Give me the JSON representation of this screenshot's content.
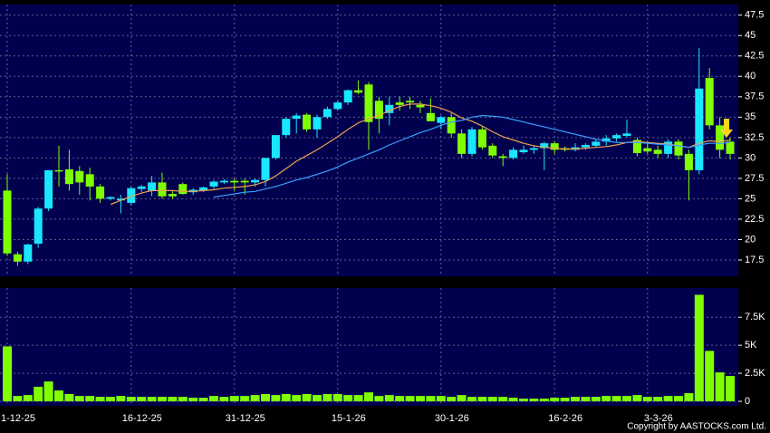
{
  "chart_data": [
    {
      "type": "candlestick",
      "categories": [
        "1-12-25",
        null,
        null,
        null,
        null,
        null,
        null,
        null,
        null,
        null,
        null,
        null,
        "16-12-25",
        null,
        null,
        null,
        null,
        null,
        null,
        null,
        null,
        null,
        "31-12-25",
        null,
        null,
        null,
        null,
        null,
        null,
        null,
        null,
        null,
        "15-1-26",
        null,
        null,
        null,
        null,
        null,
        null,
        null,
        null,
        null,
        "30-1-26",
        null,
        null,
        null,
        null,
        null,
        null,
        null,
        null,
        null,
        null,
        "16-2-26",
        null,
        null,
        null,
        null,
        null,
        null,
        null,
        null,
        "3-3-26",
        null,
        null,
        null,
        null,
        null,
        null,
        null,
        null
      ],
      "open": [
        26,
        18.2,
        17.3,
        19.5,
        23.8,
        28.5,
        28.6,
        28.4,
        28,
        26.5,
        25,
        24.8,
        24.5,
        26.2,
        26,
        27,
        25.6,
        26.8,
        25.8,
        26,
        26.5,
        27,
        27.2,
        27.2,
        27,
        27.3,
        30,
        32.8,
        34.8,
        35.3,
        33.5,
        35,
        36,
        36.8,
        38.3,
        39,
        37,
        35.5,
        36.8,
        37,
        36.5,
        35.5,
        34.3,
        35,
        33,
        30.5,
        33.5,
        31.5,
        30.2,
        30,
        30.7,
        31,
        31.2,
        31.8,
        31.2,
        31,
        31.3,
        31.5,
        32,
        32.4,
        32.7,
        32.2,
        31.2,
        31,
        30.5,
        32,
        30.5,
        28.5,
        39.8,
        34,
        32
      ],
      "high": [
        28,
        18.5,
        19.5,
        24,
        28.5,
        31.5,
        31,
        29,
        28.8,
        26.8,
        25.3,
        25.5,
        26.5,
        26.7,
        27.8,
        28.2,
        26,
        27,
        26.3,
        26.5,
        27.3,
        27.4,
        27.5,
        27.5,
        27.5,
        30,
        32.8,
        35,
        35.5,
        35.5,
        35.3,
        36.3,
        37,
        38.4,
        39.5,
        39.3,
        37.5,
        37.5,
        37.5,
        37.5,
        37,
        37.3,
        35.2,
        35.5,
        33.5,
        33.8,
        33.8,
        31.8,
        30.5,
        31.3,
        31.5,
        31.5,
        32,
        32,
        31.4,
        31.8,
        31.8,
        32.3,
        32.8,
        33,
        34.7,
        32.5,
        32,
        31.5,
        32.3,
        32.3,
        31,
        43.5,
        41,
        35,
        32.5
      ],
      "low": [
        18,
        16.8,
        17,
        19,
        23.5,
        26.5,
        26,
        25.5,
        24.8,
        24.5,
        24.8,
        23.2,
        24.2,
        25.8,
        25.3,
        25,
        25,
        25.5,
        25.5,
        25.8,
        26.2,
        26.8,
        26,
        25.5,
        26.5,
        26.5,
        29.8,
        32.5,
        33,
        33.2,
        32.5,
        34.8,
        35.8,
        36.5,
        37.8,
        31,
        33,
        34,
        35.8,
        36,
        35.5,
        34.5,
        33.5,
        32.5,
        30,
        30.2,
        31,
        30,
        29,
        29.8,
        30.5,
        30.5,
        28.5,
        30.5,
        30.8,
        30.8,
        31,
        31.3,
        31.5,
        32,
        32.5,
        30.2,
        30.5,
        30,
        30,
        29.8,
        24.8,
        28,
        33.5,
        30,
        29.8
      ],
      "close": [
        18.3,
        17.3,
        19.4,
        23.8,
        28.5,
        28.4,
        26.8,
        27,
        26.5,
        25,
        25.2,
        25,
        26.3,
        26.5,
        27,
        25.3,
        25.3,
        25.6,
        26.1,
        26.4,
        27.1,
        27.2,
        27,
        27,
        27.3,
        30,
        32.8,
        34.8,
        35.2,
        33.5,
        35,
        36,
        36.8,
        38.3,
        38,
        34.4,
        34.8,
        36.5,
        36.5,
        36.8,
        36.2,
        34.5,
        35,
        33,
        30.5,
        33.5,
        31.3,
        30.3,
        30,
        31,
        31,
        31.2,
        31.8,
        31,
        31,
        31.3,
        31.6,
        32,
        32.4,
        32.8,
        33,
        30.6,
        30.8,
        30.5,
        32,
        30.3,
        28.5,
        38.5,
        34,
        31,
        30.5
      ],
      "up_color": "#19e6ff",
      "down_color": "#80ff00",
      "moving_averages": [
        {
          "color": "#f0a050",
          "values": [
            null,
            null,
            null,
            null,
            null,
            null,
            null,
            null,
            null,
            null,
            24.3,
            24.8,
            25.3,
            25.7,
            26,
            26,
            26,
            25.9,
            25.9,
            26,
            26.1,
            26.3,
            26.4,
            26.5,
            26.7,
            27.1,
            27.8,
            28.7,
            29.6,
            30.3,
            31,
            31.8,
            32.6,
            33.5,
            34.3,
            34.8,
            35.2,
            35.8,
            36.3,
            36.6,
            36.6,
            36.4,
            36.1,
            35.6,
            34.9,
            34.5,
            33.9,
            33.2,
            32.6,
            32.2,
            31.8,
            31.5,
            31.3,
            31.2,
            31.1,
            31.1,
            31.2,
            31.3,
            31.4,
            31.6,
            31.9,
            32,
            31.9,
            31.8,
            31.7,
            31.5,
            31.3,
            31.8,
            32.1,
            32,
            32.2
          ]
        },
        {
          "color": "#3aa0ff",
          "values": [
            null,
            null,
            null,
            null,
            null,
            null,
            null,
            null,
            null,
            null,
            null,
            null,
            null,
            null,
            null,
            null,
            null,
            null,
            null,
            null,
            25.2,
            25.4,
            25.6,
            25.8,
            25.9,
            26.2,
            26.5,
            26.9,
            27.3,
            27.6,
            28,
            28.4,
            28.9,
            29.5,
            30,
            30.5,
            31,
            31.6,
            32.1,
            32.6,
            33.1,
            33.5,
            34,
            34.4,
            34.6,
            35,
            35.2,
            35.1,
            35,
            34.7,
            34.4,
            34.1,
            33.8,
            33.5,
            33.2,
            32.9,
            32.6,
            32.3,
            32.1,
            31.9,
            31.9,
            31.9,
            31.8,
            31.7,
            31.6,
            31.5,
            31.3,
            31.6,
            31.8,
            31.8,
            31.9
          ]
        }
      ],
      "ylim": [
        15.5,
        48.8
      ],
      "yticks": [
        17.5,
        20,
        22.5,
        25,
        27.5,
        30,
        32.5,
        35,
        37.5,
        40,
        42.5,
        45,
        47.5
      ],
      "grid": true
    },
    {
      "type": "bar",
      "values": [
        4900,
        480,
        560,
        1300,
        1770,
        970,
        650,
        480,
        480,
        400,
        400,
        480,
        400,
        400,
        400,
        400,
        400,
        400,
        320,
        320,
        480,
        400,
        480,
        480,
        560,
        650,
        560,
        650,
        560,
        650,
        560,
        650,
        650,
        560,
        560,
        800,
        480,
        560,
        480,
        480,
        480,
        480,
        480,
        400,
        560,
        400,
        400,
        400,
        400,
        320,
        240,
        240,
        240,
        320,
        320,
        400,
        400,
        400,
        480,
        480,
        480,
        560,
        400,
        400,
        480,
        480,
        730,
        9500,
        4500,
        2580,
        2260
      ],
      "color": "#80ff00",
      "ylim": [
        -400,
        10100
      ],
      "yticks": [
        0,
        {
          "value": 2500,
          "label": "2.5K"
        },
        {
          "value": 5000,
          "label": "5K"
        },
        {
          "value": 7500,
          "label": "7.5K"
        }
      ],
      "grid": true
    }
  ],
  "copyright": "Copyright by AASTOCKS.com Ltd."
}
